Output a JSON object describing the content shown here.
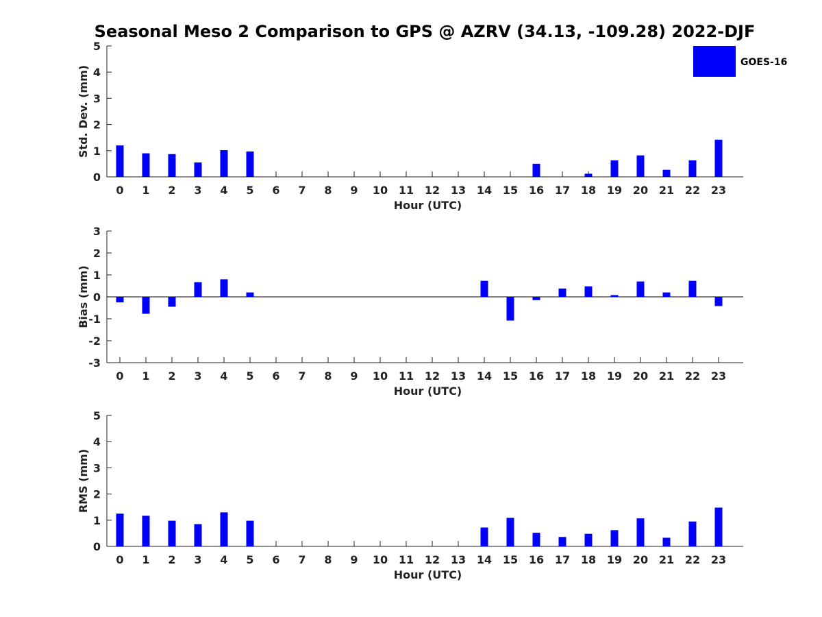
{
  "title": "Seasonal Meso 2 Comparison to GPS @ AZRV (34.13, -109.28) 2022-DJF",
  "legend": {
    "label": "GOES-16",
    "color": "#0000ff",
    "placement": "top-right"
  },
  "chart_data": [
    {
      "type": "bar",
      "key": "std",
      "title": "",
      "xlabel": "Hour (UTC)",
      "ylabel": "Std. Dev. (mm)",
      "ylim": [
        0,
        5
      ],
      "yticks": [
        0,
        1,
        2,
        3,
        4,
        5
      ],
      "categories": [
        0,
        1,
        2,
        3,
        4,
        5,
        6,
        7,
        8,
        9,
        10,
        11,
        12,
        13,
        14,
        15,
        16,
        17,
        18,
        19,
        20,
        21,
        22,
        23
      ],
      "series": [
        {
          "name": "GOES-16",
          "values": [
            1.2,
            0.9,
            0.87,
            0.55,
            1.02,
            0.97,
            null,
            null,
            null,
            null,
            null,
            null,
            null,
            null,
            0.0,
            0.0,
            0.5,
            0.0,
            0.12,
            0.63,
            0.82,
            0.27,
            0.63,
            1.42
          ]
        }
      ]
    },
    {
      "type": "bar",
      "key": "bias",
      "title": "",
      "xlabel": "Hour (UTC)",
      "ylabel": "Bias (mm)",
      "ylim": [
        -3,
        3
      ],
      "yticks": [
        -3,
        -2,
        -1,
        0,
        1,
        2,
        3
      ],
      "categories": [
        0,
        1,
        2,
        3,
        4,
        5,
        6,
        7,
        8,
        9,
        10,
        11,
        12,
        13,
        14,
        15,
        16,
        17,
        18,
        19,
        20,
        21,
        22,
        23
      ],
      "series": [
        {
          "name": "GOES-16",
          "values": [
            -0.25,
            -0.77,
            -0.45,
            0.67,
            0.8,
            0.2,
            null,
            null,
            null,
            null,
            null,
            null,
            null,
            null,
            0.73,
            -1.08,
            -0.15,
            0.38,
            0.48,
            0.08,
            0.7,
            0.2,
            0.73,
            -0.42
          ]
        }
      ]
    },
    {
      "type": "bar",
      "key": "rms",
      "title": "",
      "xlabel": "Hour (UTC)",
      "ylabel": "RMS (mm)",
      "ylim": [
        0,
        5
      ],
      "yticks": [
        0,
        1,
        2,
        3,
        4,
        5
      ],
      "categories": [
        0,
        1,
        2,
        3,
        4,
        5,
        6,
        7,
        8,
        9,
        10,
        11,
        12,
        13,
        14,
        15,
        16,
        17,
        18,
        19,
        20,
        21,
        22,
        23
      ],
      "series": [
        {
          "name": "GOES-16",
          "values": [
            1.25,
            1.17,
            0.98,
            0.85,
            1.3,
            0.98,
            null,
            null,
            null,
            null,
            null,
            null,
            null,
            null,
            0.72,
            1.09,
            0.52,
            0.36,
            0.48,
            0.62,
            1.07,
            0.33,
            0.95,
            1.48
          ]
        }
      ]
    }
  ]
}
